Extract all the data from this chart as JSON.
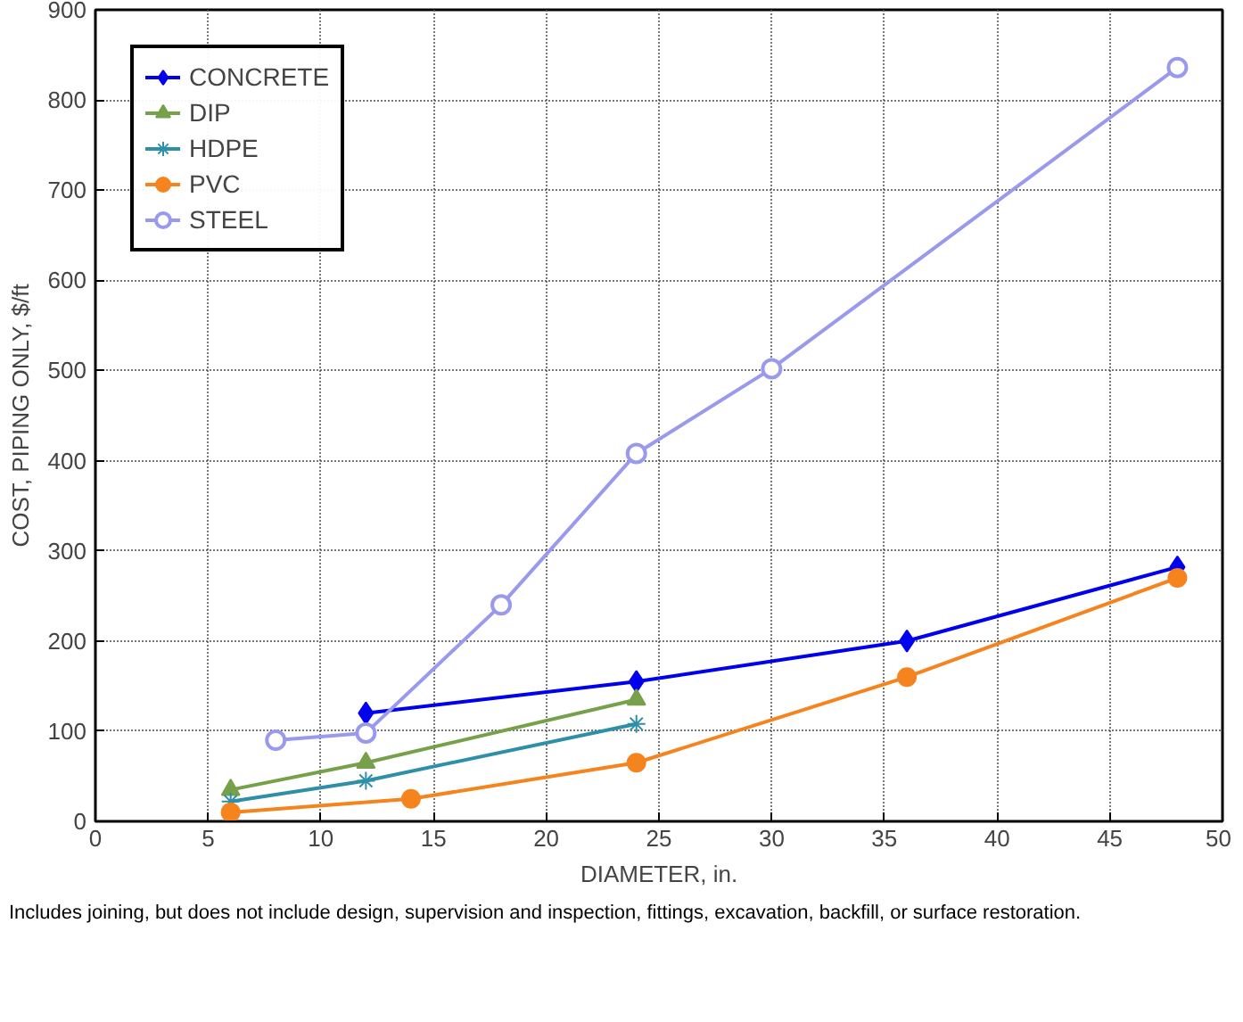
{
  "chart_data": {
    "type": "line",
    "xlabel": "DIAMETER, in.",
    "ylabel": "COST, PIPING ONLY, $/ft",
    "xlim": [
      0,
      50
    ],
    "xticks": [
      0,
      5,
      10,
      15,
      20,
      25,
      30,
      35,
      40,
      45,
      50
    ],
    "ylim": [
      0,
      900
    ],
    "yticks": [
      0,
      100,
      200,
      300,
      400,
      500,
      600,
      700,
      800,
      900
    ],
    "grid": true,
    "legend": "top left",
    "line_style": "solid",
    "annotations": [
      "Includes joining, but does not include design, supervision and inspection, fittings, excavation, backfill, or surface restoration."
    ],
    "series": [
      {
        "name": "CONCRETE",
        "color": "#0000ee",
        "marker": "diamond",
        "x": [
          12,
          24,
          36,
          48
        ],
        "values": [
          120,
          155,
          200,
          282
        ]
      },
      {
        "name": "DIP",
        "color": "#77a04a",
        "marker": "triangle",
        "x": [
          6,
          12,
          24
        ],
        "values": [
          35,
          65,
          135
        ]
      },
      {
        "name": "HDPE",
        "color": "#2e8fa8",
        "marker": "cross",
        "x": [
          6,
          12,
          24
        ],
        "values": [
          22,
          45,
          108
        ]
      },
      {
        "name": "PVC",
        "color": "#f5841f",
        "marker": "circle",
        "x": [
          6,
          14,
          24,
          36,
          48
        ],
        "values": [
          10,
          25,
          65,
          160,
          270
        ]
      },
      {
        "name": "STEEL",
        "color": "#9999ee",
        "marker": "circle",
        "x": [
          8,
          12,
          18,
          24,
          30,
          48
        ],
        "values": [
          90,
          98,
          240,
          408,
          502,
          836
        ]
      }
    ]
  }
}
